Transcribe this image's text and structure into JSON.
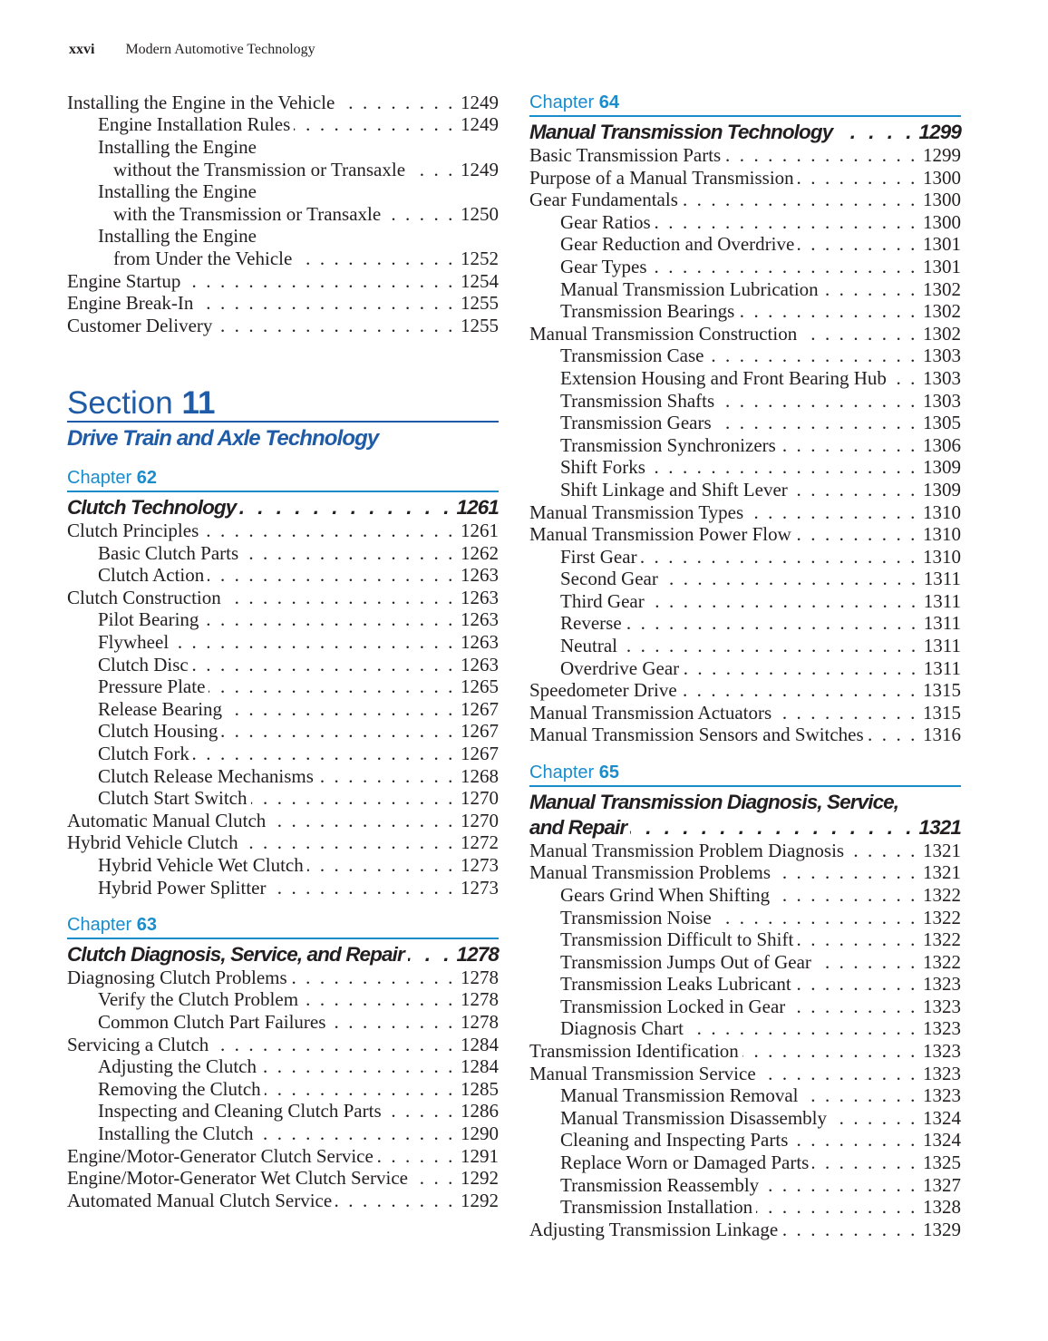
{
  "header": {
    "page_number": "xxvi",
    "book_title": "Modern Automotive Technology"
  },
  "colors": {
    "section": "#1f5ba6",
    "chapter": "#1a8ccc",
    "text": "#231f20"
  },
  "left": {
    "items": [
      {
        "type": "entry",
        "level": 0,
        "text": "Installing the Engine in the Vehicle",
        "page": "1249"
      },
      {
        "type": "entry",
        "level": 1,
        "text": "Engine Installation Rules",
        "page": "1249"
      },
      {
        "type": "entry",
        "level": 1,
        "text": "Installing the Engine"
      },
      {
        "type": "entry",
        "level": 2,
        "text": "without the Transmission or Transaxle",
        "page": "1249"
      },
      {
        "type": "entry",
        "level": 1,
        "text": "Installing the Engine"
      },
      {
        "type": "entry",
        "level": 2,
        "text": "with the Transmission or Transaxle",
        "page": "1250"
      },
      {
        "type": "entry",
        "level": 1,
        "text": "Installing the Engine"
      },
      {
        "type": "entry",
        "level": 2,
        "text": "from Under the Vehicle",
        "page": "1252"
      },
      {
        "type": "entry",
        "level": 0,
        "text": "Engine Startup",
        "page": "1254"
      },
      {
        "type": "entry",
        "level": 0,
        "text": "Engine Break-In",
        "page": "1255"
      },
      {
        "type": "entry",
        "level": 0,
        "text": "Customer Delivery",
        "page": "1255"
      },
      {
        "type": "section",
        "label": "Section",
        "number": "11",
        "title": "Drive Train and Axle Technology"
      },
      {
        "type": "chapter",
        "label": "Chapter",
        "number": "62"
      },
      {
        "type": "title",
        "text": "Clutch Technology",
        "page": "1261"
      },
      {
        "type": "entry",
        "level": 0,
        "text": "Clutch Principles",
        "page": "1261"
      },
      {
        "type": "entry",
        "level": 1,
        "text": "Basic Clutch Parts",
        "page": "1262"
      },
      {
        "type": "entry",
        "level": 1,
        "text": "Clutch Action",
        "page": "1263"
      },
      {
        "type": "entry",
        "level": 0,
        "text": "Clutch Construction",
        "page": "1263"
      },
      {
        "type": "entry",
        "level": 1,
        "text": "Pilot Bearing",
        "page": "1263"
      },
      {
        "type": "entry",
        "level": 1,
        "text": "Flywheel",
        "page": "1263"
      },
      {
        "type": "entry",
        "level": 1,
        "text": "Clutch Disc",
        "page": "1263"
      },
      {
        "type": "entry",
        "level": 1,
        "text": "Pressure Plate",
        "page": "1265"
      },
      {
        "type": "entry",
        "level": 1,
        "text": "Release Bearing",
        "page": "1267"
      },
      {
        "type": "entry",
        "level": 1,
        "text": "Clutch Housing",
        "page": "1267"
      },
      {
        "type": "entry",
        "level": 1,
        "text": "Clutch Fork",
        "page": "1267"
      },
      {
        "type": "entry",
        "level": 1,
        "text": "Clutch Release Mechanisms",
        "page": "1268"
      },
      {
        "type": "entry",
        "level": 1,
        "text": "Clutch Start Switch",
        "page": "1270"
      },
      {
        "type": "entry",
        "level": 0,
        "text": "Automatic Manual Clutch",
        "page": "1270"
      },
      {
        "type": "entry",
        "level": 0,
        "text": "Hybrid Vehicle Clutch",
        "page": "1272"
      },
      {
        "type": "entry",
        "level": 1,
        "text": "Hybrid Vehicle Wet Clutch",
        "page": "1273"
      },
      {
        "type": "entry",
        "level": 1,
        "text": "Hybrid Power Splitter",
        "page": "1273"
      },
      {
        "type": "chapter",
        "label": "Chapter",
        "number": "63"
      },
      {
        "type": "title",
        "text": "Clutch Diagnosis, Service, and Repair",
        "page": "1278"
      },
      {
        "type": "entry",
        "level": 0,
        "text": "Diagnosing Clutch Problems",
        "page": "1278"
      },
      {
        "type": "entry",
        "level": 1,
        "text": "Verify the Clutch Problem",
        "page": "1278"
      },
      {
        "type": "entry",
        "level": 1,
        "text": "Common Clutch Part Failures",
        "page": "1278"
      },
      {
        "type": "entry",
        "level": 0,
        "text": "Servicing a Clutch",
        "page": "1284"
      },
      {
        "type": "entry",
        "level": 1,
        "text": "Adjusting the Clutch",
        "page": "1284"
      },
      {
        "type": "entry",
        "level": 1,
        "text": "Removing the Clutch",
        "page": "1285"
      },
      {
        "type": "entry",
        "level": 1,
        "text": "Inspecting and Cleaning Clutch Parts",
        "page": "1286"
      },
      {
        "type": "entry",
        "level": 1,
        "text": "Installing the Clutch",
        "page": "1290"
      },
      {
        "type": "entry",
        "level": 0,
        "text": "Engine/Motor-Generator Clutch Service",
        "page": "1291"
      },
      {
        "type": "entry",
        "level": 0,
        "text": "Engine/Motor-Generator Wet Clutch Service",
        "page": "1292"
      },
      {
        "type": "entry",
        "level": 0,
        "text": "Automated Manual Clutch Service",
        "page": "1292"
      }
    ]
  },
  "right": {
    "items": [
      {
        "type": "chapter",
        "label": "Chapter",
        "number": "64"
      },
      {
        "type": "title",
        "text": "Manual Transmission Technology",
        "page": "1299"
      },
      {
        "type": "entry",
        "level": 0,
        "text": "Basic Transmission Parts",
        "page": "1299"
      },
      {
        "type": "entry",
        "level": 0,
        "text": "Purpose of a Manual Transmission",
        "page": "1300"
      },
      {
        "type": "entry",
        "level": 0,
        "text": "Gear Fundamentals",
        "page": "1300"
      },
      {
        "type": "entry",
        "level": 1,
        "text": "Gear Ratios",
        "page": "1300"
      },
      {
        "type": "entry",
        "level": 1,
        "text": "Gear Reduction and Overdrive",
        "page": "1301"
      },
      {
        "type": "entry",
        "level": 1,
        "text": "Gear Types",
        "page": "1301"
      },
      {
        "type": "entry",
        "level": 1,
        "text": "Manual Transmission Lubrication",
        "page": "1302"
      },
      {
        "type": "entry",
        "level": 1,
        "text": "Transmission Bearings",
        "page": "1302"
      },
      {
        "type": "entry",
        "level": 0,
        "text": "Manual Transmission Construction",
        "page": "1302"
      },
      {
        "type": "entry",
        "level": 1,
        "text": "Transmission Case",
        "page": "1303"
      },
      {
        "type": "entry",
        "level": 1,
        "text": "Extension Housing and Front Bearing Hub",
        "page": "1303"
      },
      {
        "type": "entry",
        "level": 1,
        "text": "Transmission Shafts",
        "page": "1303"
      },
      {
        "type": "entry",
        "level": 1,
        "text": "Transmission Gears",
        "page": "1305"
      },
      {
        "type": "entry",
        "level": 1,
        "text": "Transmission Synchronizers",
        "page": "1306"
      },
      {
        "type": "entry",
        "level": 1,
        "text": "Shift Forks",
        "page": "1309"
      },
      {
        "type": "entry",
        "level": 1,
        "text": "Shift Linkage and Shift Lever",
        "page": "1309"
      },
      {
        "type": "entry",
        "level": 0,
        "text": "Manual Transmission Types",
        "page": "1310"
      },
      {
        "type": "entry",
        "level": 0,
        "text": "Manual Transmission Power Flow",
        "page": "1310"
      },
      {
        "type": "entry",
        "level": 1,
        "text": "First Gear",
        "page": "1310"
      },
      {
        "type": "entry",
        "level": 1,
        "text": "Second Gear",
        "page": "1311"
      },
      {
        "type": "entry",
        "level": 1,
        "text": "Third Gear",
        "page": "1311"
      },
      {
        "type": "entry",
        "level": 1,
        "text": "Reverse",
        "page": "1311"
      },
      {
        "type": "entry",
        "level": 1,
        "text": "Neutral",
        "page": "1311"
      },
      {
        "type": "entry",
        "level": 1,
        "text": "Overdrive Gear",
        "page": "1311"
      },
      {
        "type": "entry",
        "level": 0,
        "text": "Speedometer Drive",
        "page": "1315"
      },
      {
        "type": "entry",
        "level": 0,
        "text": "Manual Transmission Actuators",
        "page": "1315"
      },
      {
        "type": "entry",
        "level": 0,
        "text": "Manual Transmission Sensors and Switches",
        "page": "1316"
      },
      {
        "type": "chapter",
        "label": "Chapter",
        "number": "65"
      },
      {
        "type": "title",
        "text": "Manual Transmission Diagnosis, Service,"
      },
      {
        "type": "title",
        "text": "and Repair",
        "page": "1321",
        "cont": true
      },
      {
        "type": "entry",
        "level": 0,
        "text": "Manual Transmission Problem Diagnosis",
        "page": "1321"
      },
      {
        "type": "entry",
        "level": 0,
        "text": "Manual Transmission Problems",
        "page": "1321"
      },
      {
        "type": "entry",
        "level": 1,
        "text": "Gears Grind When Shifting",
        "page": "1322"
      },
      {
        "type": "entry",
        "level": 1,
        "text": "Transmission Noise",
        "page": "1322"
      },
      {
        "type": "entry",
        "level": 1,
        "text": "Transmission Difficult to Shift",
        "page": "1322"
      },
      {
        "type": "entry",
        "level": 1,
        "text": "Transmission Jumps Out of Gear",
        "page": "1322"
      },
      {
        "type": "entry",
        "level": 1,
        "text": "Transmission Leaks Lubricant",
        "page": "1323"
      },
      {
        "type": "entry",
        "level": 1,
        "text": "Transmission Locked in Gear",
        "page": "1323"
      },
      {
        "type": "entry",
        "level": 1,
        "text": "Diagnosis Chart",
        "page": "1323"
      },
      {
        "type": "entry",
        "level": 0,
        "text": "Transmission Identification",
        "page": "1323"
      },
      {
        "type": "entry",
        "level": 0,
        "text": "Manual Transmission Service",
        "page": "1323"
      },
      {
        "type": "entry",
        "level": 1,
        "text": "Manual Transmission Removal",
        "page": "1323"
      },
      {
        "type": "entry",
        "level": 1,
        "text": "Manual Transmission Disassembly",
        "page": "1324"
      },
      {
        "type": "entry",
        "level": 1,
        "text": "Cleaning and Inspecting Parts",
        "page": "1324"
      },
      {
        "type": "entry",
        "level": 1,
        "text": "Replace Worn or Damaged Parts",
        "page": "1325"
      },
      {
        "type": "entry",
        "level": 1,
        "text": "Transmission Reassembly",
        "page": "1327"
      },
      {
        "type": "entry",
        "level": 1,
        "text": "Transmission Installation",
        "page": "1328"
      },
      {
        "type": "entry",
        "level": 0,
        "text": "Adjusting Transmission Linkage",
        "page": "1329"
      }
    ]
  }
}
